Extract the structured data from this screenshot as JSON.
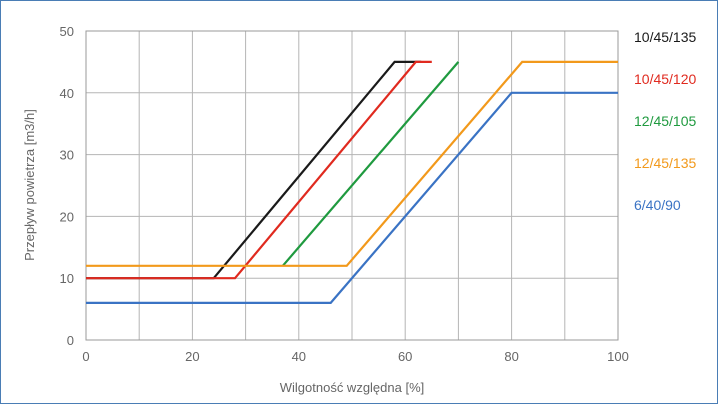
{
  "chart_data": {
    "type": "line",
    "title": "",
    "xlabel": "Wilgotność względna [%]",
    "ylabel": "Przepływ powietrza [m3/h]",
    "xlim": [
      0,
      100
    ],
    "ylim": [
      0,
      50
    ],
    "xticks": [
      0,
      20,
      40,
      60,
      80,
      100
    ],
    "yticks": [
      0,
      10,
      20,
      30,
      40,
      50
    ],
    "grid": true,
    "legend_position": "right",
    "series": [
      {
        "name": "10/45/135",
        "color": "#1a1a1a",
        "x": [
          0,
          24,
          58,
          63
        ],
        "y": [
          10,
          10,
          45,
          45
        ]
      },
      {
        "name": "10/45/120",
        "color": "#e02a1f",
        "x": [
          0,
          28,
          62,
          65
        ],
        "y": [
          10,
          10,
          45,
          45
        ]
      },
      {
        "name": "12/45/105",
        "color": "#1f9a3f",
        "x": [
          37,
          70
        ],
        "y": [
          12,
          45
        ]
      },
      {
        "name": "12/45/135",
        "color": "#f2991b",
        "x": [
          0,
          49,
          82,
          100
        ],
        "y": [
          12,
          12,
          45,
          45
        ]
      },
      {
        "name": "6/40/90",
        "color": "#3a73c4",
        "x": [
          0,
          46,
          80,
          100
        ],
        "y": [
          6,
          6,
          40,
          40
        ]
      }
    ]
  }
}
